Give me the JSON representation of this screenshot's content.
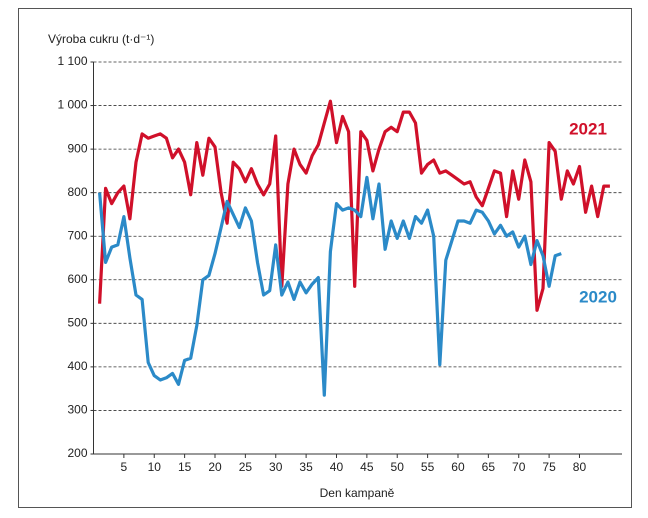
{
  "chart_data": {
    "type": "line",
    "ylabel": "Výroba cukru (t·d⁻¹)",
    "xlabel": "Den kampaně",
    "x": [
      1,
      2,
      3,
      4,
      5,
      6,
      7,
      8,
      9,
      10,
      11,
      12,
      13,
      14,
      15,
      16,
      17,
      18,
      19,
      20,
      21,
      22,
      23,
      24,
      25,
      26,
      27,
      28,
      29,
      30,
      31,
      32,
      33,
      34,
      35,
      36,
      37,
      38,
      39,
      40,
      41,
      42,
      43,
      44,
      45,
      46,
      47,
      48,
      49,
      50,
      51,
      52,
      53,
      54,
      55,
      56,
      57,
      58,
      59,
      60,
      61,
      62,
      63,
      64,
      65,
      66,
      67,
      68,
      69,
      70,
      71,
      72,
      73,
      74,
      75,
      76,
      77,
      78,
      79,
      80,
      81,
      82,
      83,
      84,
      85
    ],
    "series": [
      {
        "name": "2021",
        "color": "#d0102a",
        "values": [
          545,
          810,
          775,
          800,
          815,
          740,
          870,
          935,
          925,
          930,
          935,
          925,
          880,
          900,
          870,
          795,
          915,
          840,
          925,
          905,
          800,
          730,
          870,
          855,
          825,
          855,
          820,
          795,
          820,
          930,
          585,
          820,
          900,
          865,
          845,
          885,
          910,
          960,
          1010,
          915,
          975,
          940,
          585,
          940,
          920,
          850,
          900,
          940,
          950,
          940,
          985,
          985,
          960,
          845,
          865,
          875,
          845,
          850,
          840,
          830,
          820,
          825,
          790,
          770,
          810,
          850,
          845,
          745,
          850,
          785,
          875,
          825,
          530,
          580,
          915,
          895,
          785,
          850,
          820,
          860,
          755,
          815,
          745,
          815,
          815
        ]
      },
      {
        "name": "2020",
        "color": "#2b8ac8",
        "values": [
          800,
          640,
          675,
          680,
          745,
          650,
          565,
          555,
          410,
          380,
          370,
          375,
          385,
          360,
          415,
          420,
          495,
          600,
          610,
          660,
          720,
          780,
          750,
          720,
          765,
          735,
          640,
          565,
          575,
          680,
          565,
          595,
          555,
          595,
          570,
          590,
          605,
          335,
          665,
          775,
          760,
          765,
          760,
          745,
          835,
          740,
          820,
          670,
          735,
          695,
          735,
          695,
          745,
          730,
          760,
          700,
          405,
          645,
          690,
          735,
          735,
          730,
          760,
          755,
          735,
          705,
          725,
          700,
          710,
          675,
          700,
          635,
          690,
          655,
          585,
          655,
          660,
          null,
          null,
          null,
          null,
          null,
          null,
          null,
          null
        ]
      }
    ],
    "xlim": [
      0,
      87
    ],
    "xticks": [
      5,
      10,
      15,
      20,
      25,
      30,
      35,
      40,
      45,
      50,
      55,
      60,
      65,
      70,
      75,
      80
    ],
    "ylim": [
      200,
      1100
    ],
    "yticks": [
      200,
      300,
      400,
      500,
      600,
      700,
      800,
      900,
      {
        "value": 1000,
        "label": "1 000"
      },
      {
        "value": 1100,
        "label": "1 100"
      }
    ],
    "grid": true
  }
}
